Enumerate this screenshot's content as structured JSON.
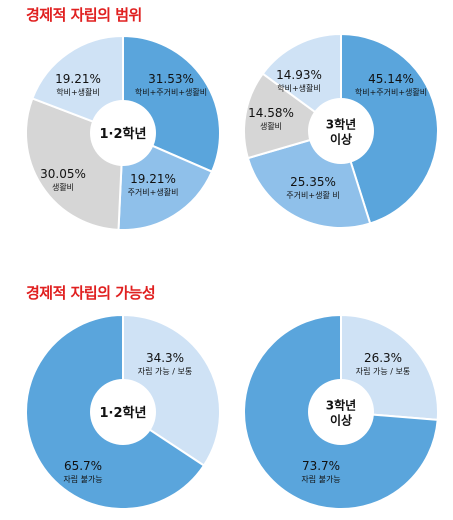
{
  "titles": {
    "section1": "경제적 자립의 범위",
    "section2": "경제적 자립의 가능성"
  },
  "colors": {
    "dark_blue": "#5aa5dc",
    "mid_blue": "#8fc0ea",
    "light_blue": "#cfe2f5",
    "gray": "#d6d6d6",
    "title_red": "#e02020"
  },
  "chart_data": [
    {
      "type": "pie",
      "section": "경제적 자립의 범위",
      "center_label": [
        "1·2학년"
      ],
      "slices": [
        {
          "value": 31.53,
          "value_label": "31.53%",
          "label": "학비+주거비+생활비",
          "color": "#5aa5dc"
        },
        {
          "value": 19.21,
          "value_label": "19.21%",
          "label": "주거비+생활비",
          "color": "#8fc0ea"
        },
        {
          "value": 30.05,
          "value_label": "30.05%",
          "label": "생활비",
          "color": "#d6d6d6"
        },
        {
          "value": 19.21,
          "value_label": "19.21%",
          "label": "학비+생활비",
          "color": "#cfe2f5"
        }
      ]
    },
    {
      "type": "pie",
      "section": "경제적 자립의 범위",
      "center_label": [
        "3학년",
        "이상"
      ],
      "slices": [
        {
          "value": 45.14,
          "value_label": "45.14%",
          "label": "학비+주거비+생활비",
          "color": "#5aa5dc"
        },
        {
          "value": 25.35,
          "value_label": "25.35%",
          "label": "주거비+생활 비",
          "color": "#8fc0ea"
        },
        {
          "value": 14.58,
          "value_label": "14.58%",
          "label": "생활비",
          "color": "#d6d6d6"
        },
        {
          "value": 14.93,
          "value_label": "14.93%",
          "label": "학비+생활비",
          "color": "#cfe2f5"
        }
      ]
    },
    {
      "type": "pie",
      "section": "경제적 자립의 가능성",
      "center_label": [
        "1·2학년"
      ],
      "slices": [
        {
          "value": 34.3,
          "value_label": "34.3%",
          "label": "자립 가능 / 보통",
          "color": "#cfe2f5"
        },
        {
          "value": 65.7,
          "value_label": "65.7%",
          "label": "자립 불가능",
          "color": "#5aa5dc"
        }
      ]
    },
    {
      "type": "pie",
      "section": "경제적 자립의 가능성",
      "center_label": [
        "3학년",
        "이상"
      ],
      "slices": [
        {
          "value": 26.3,
          "value_label": "26.3%",
          "label": "자립 가능 / 보통",
          "color": "#cfe2f5"
        },
        {
          "value": 73.7,
          "value_label": "73.7%",
          "label": "자립 불가능",
          "color": "#5aa5dc"
        }
      ]
    }
  ]
}
